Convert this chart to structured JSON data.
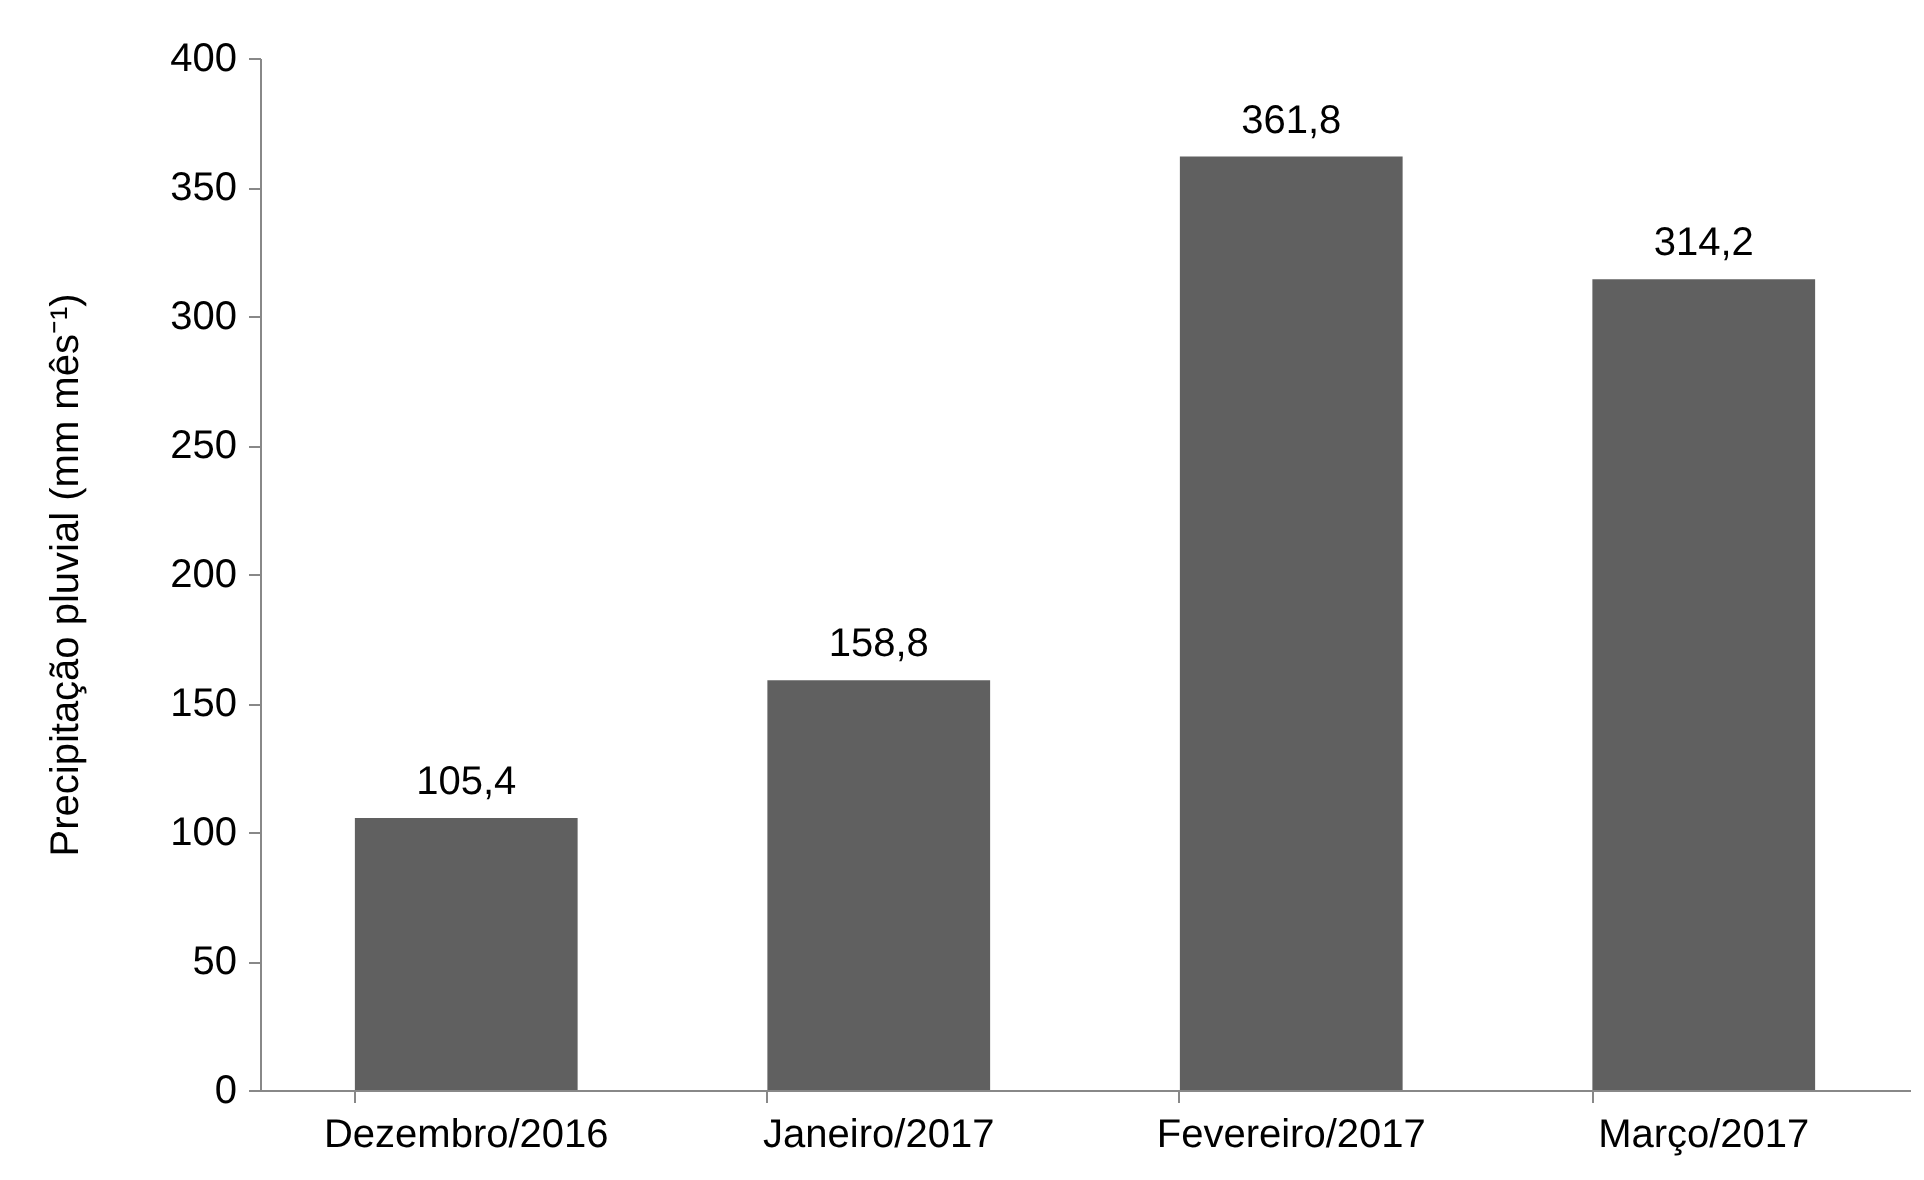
{
  "chart_data": {
    "type": "bar",
    "ylabel": "Precipitação pluvial (mm mês⁻¹)",
    "categories": [
      "Dezembro/2016",
      "Janeiro/2017",
      "Fevereiro/2017",
      "Março/2017"
    ],
    "values": [
      105.4,
      158.8,
      361.8,
      314.2
    ],
    "value_labels": [
      "105,4",
      "158,8",
      "361,8",
      "314,2"
    ],
    "color": "#606060",
    "ylim": [
      0,
      400
    ],
    "yticks": [
      0,
      50,
      100,
      150,
      200,
      250,
      300,
      350,
      400
    ],
    "grid": false
  }
}
